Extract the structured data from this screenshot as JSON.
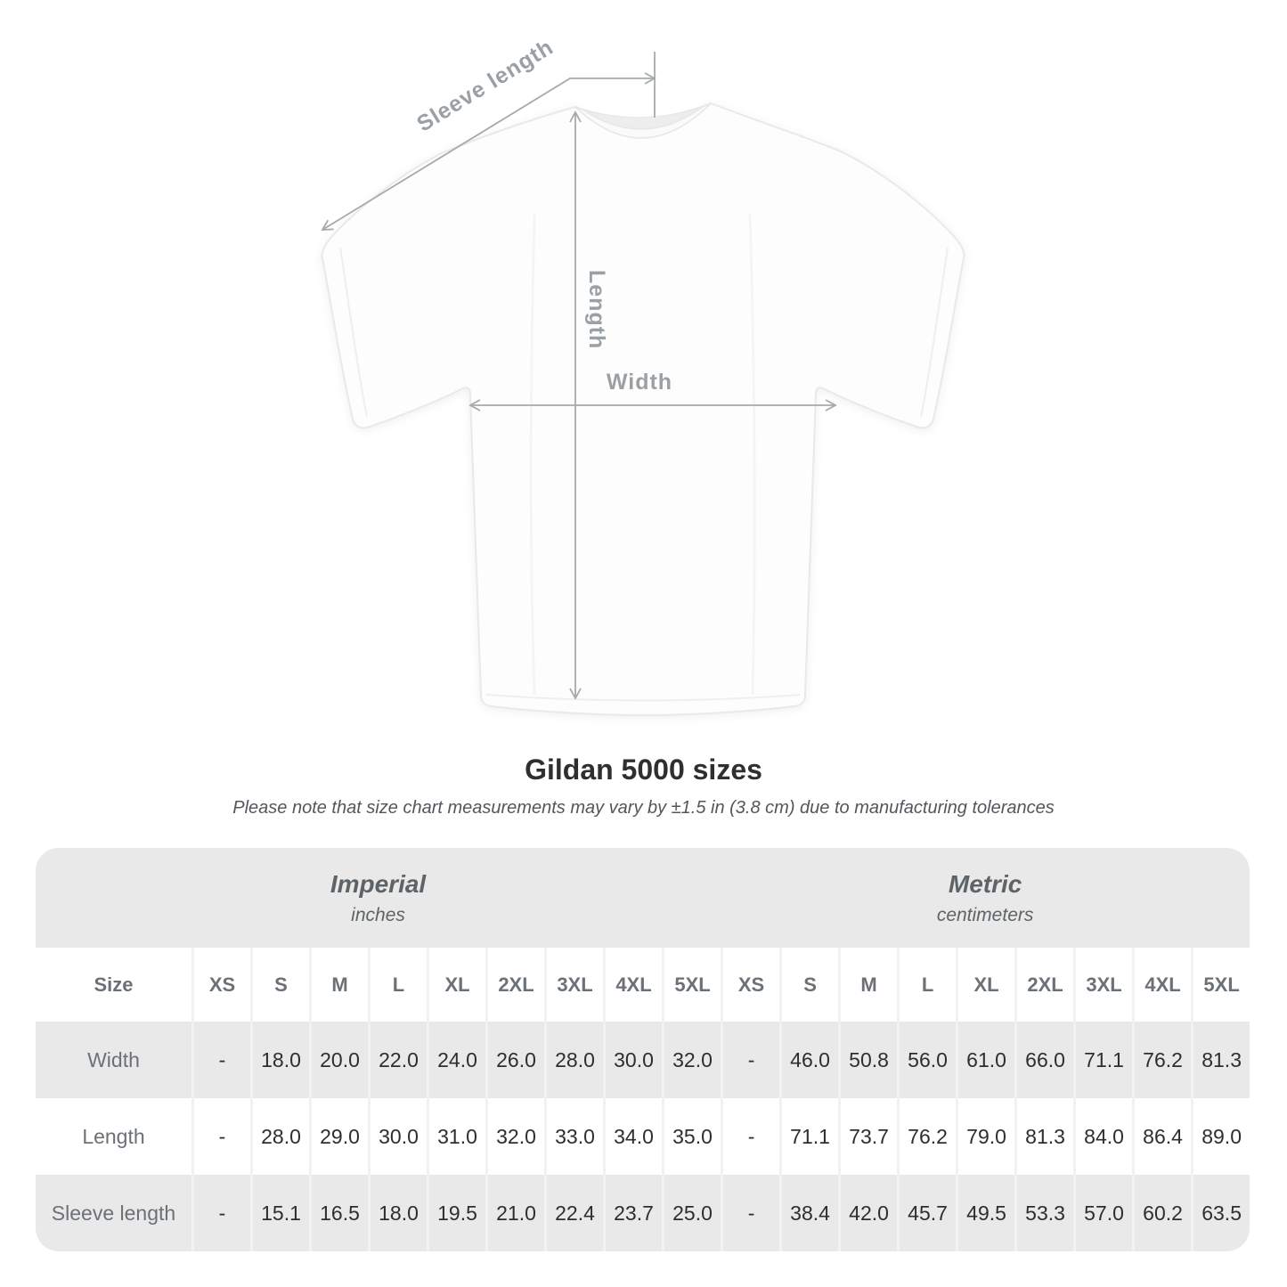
{
  "title": "Gildan 5000 sizes",
  "subtitle": "Please note that size chart measurements may vary by ±1.5 in (3.8 cm) due to manufacturing tolerances",
  "diagram": {
    "labels": {
      "sleeve_length": "Sleeve length",
      "length": "Length",
      "width": "Width"
    }
  },
  "table": {
    "size_label": "Size",
    "unit_groups": [
      {
        "name": "Imperial",
        "unit": "inches"
      },
      {
        "name": "Metric",
        "unit": "centimeters"
      }
    ],
    "sizes": [
      "XS",
      "S",
      "M",
      "L",
      "XL",
      "2XL",
      "3XL",
      "4XL",
      "5XL"
    ],
    "rows": [
      {
        "label": "Width",
        "imperial": [
          "-",
          "18.0",
          "20.0",
          "22.0",
          "24.0",
          "26.0",
          "28.0",
          "30.0",
          "32.0"
        ],
        "metric": [
          "-",
          "46.0",
          "50.8",
          "56.0",
          "61.0",
          "66.0",
          "71.1",
          "76.2",
          "81.3"
        ]
      },
      {
        "label": "Length",
        "imperial": [
          "-",
          "28.0",
          "29.0",
          "30.0",
          "31.0",
          "32.0",
          "33.0",
          "34.0",
          "35.0"
        ],
        "metric": [
          "-",
          "71.1",
          "73.7",
          "76.2",
          "79.0",
          "81.3",
          "84.0",
          "86.4",
          "89.0"
        ]
      },
      {
        "label": "Sleeve length",
        "imperial": [
          "-",
          "15.1",
          "16.5",
          "18.0",
          "19.5",
          "21.0",
          "22.4",
          "23.7",
          "25.0"
        ],
        "metric": [
          "-",
          "38.4",
          "42.0",
          "45.7",
          "49.5",
          "53.3",
          "57.0",
          "60.2",
          "63.5"
        ]
      }
    ]
  },
  "colors": {
    "row_gray": "#e9e9e9",
    "separator": "#f2f2f2",
    "measure_gray": "#9ba0a4",
    "value_text": "#2c2e30",
    "label_text": "#6b7176",
    "title_text": "#2d2f31"
  }
}
